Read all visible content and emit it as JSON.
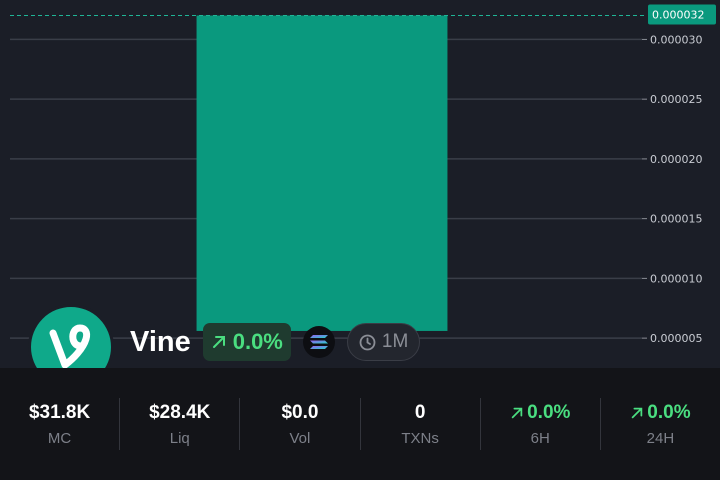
{
  "chart_data": {
    "type": "bar",
    "categories": [
      ""
    ],
    "values": [
      3.2e-05
    ],
    "base": 5.6e-06,
    "ylim": [
      2.5e-06,
      3.33e-05
    ],
    "yticks": [
      5e-06,
      1e-05,
      1.5e-05,
      2e-05,
      2.5e-05,
      3e-05
    ],
    "ytick_labels": [
      "0.000005",
      "0.000010",
      "0.000015",
      "0.000020",
      "0.000025",
      "0.000030"
    ],
    "current_price_label": "0.000032",
    "bar_color": "#0a997e",
    "grid": true
  },
  "token": {
    "name": "Vine",
    "logo_letter": "V",
    "change": "0.0%",
    "age": "1M",
    "chain_icon": "solana-icon"
  },
  "stats": [
    {
      "value": "$31.8K",
      "label": "MC",
      "positive": false
    },
    {
      "value": "$28.4K",
      "label": "Liq",
      "positive": false
    },
    {
      "value": "$0.0",
      "label": "Vol",
      "positive": false
    },
    {
      "value": "0",
      "label": "TXNs",
      "positive": false
    },
    {
      "value": "0.0%",
      "label": "6H",
      "positive": true
    },
    {
      "value": "0.0%",
      "label": "24H",
      "positive": true
    }
  ],
  "colors": {
    "background": "#1b1e27",
    "accent": "#0fa98a",
    "positive": "#4ade80",
    "stats_bar": "#131418"
  }
}
